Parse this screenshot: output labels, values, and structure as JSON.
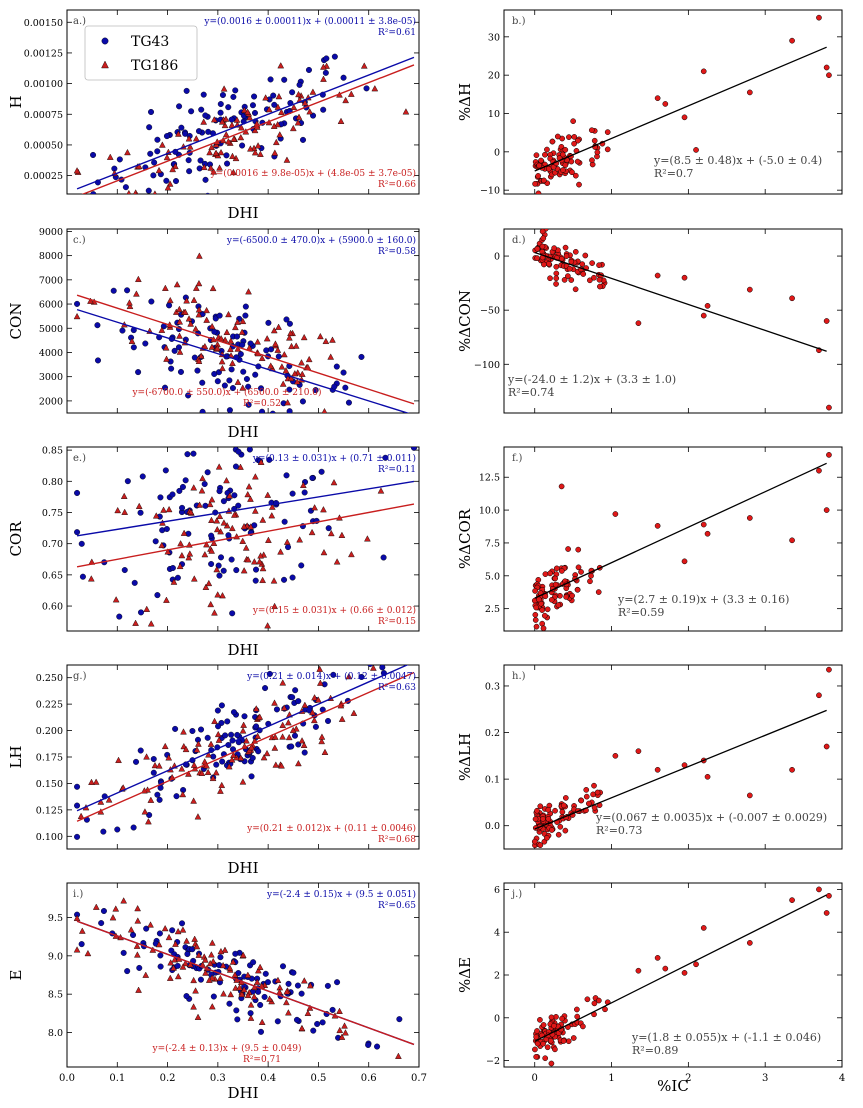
{
  "figure": {
    "legend": [
      {
        "label": "TG43",
        "color": "#0a0aa8",
        "marker": "circle"
      },
      {
        "label": "TG186",
        "color": "#c81e1e",
        "marker": "triangle"
      }
    ]
  },
  "chart_data": [
    {
      "type": "scatter",
      "panel": "a.)",
      "title": "",
      "xlabel": "DHI",
      "ylabel": "H",
      "xlim": [
        0.0,
        0.7
      ],
      "ylim": [
        0.0001,
        0.0016
      ],
      "xticks": [
        0.0,
        0.1,
        0.2,
        0.3,
        0.4,
        0.5,
        0.6,
        0.7
      ],
      "xticklabels": [],
      "yticks": [
        0.00025,
        0.0005,
        0.00075,
        0.001,
        0.00125,
        0.0015
      ],
      "yticklabels": [
        "0.00025",
        "0.00050",
        "0.00075",
        "0.00100",
        "0.00125",
        "0.00150"
      ],
      "legend_position": "top-left",
      "series": [
        {
          "name": "TG43",
          "marker": "circle",
          "color": "#0a0aa8",
          "fit": {
            "slope": 0.0016,
            "intercept": 0.00011,
            "label": "y=(0.0016 ± 0.00011)x + (0.00011 ± 3.8e-05)",
            "r2": "R²=0.61"
          }
        },
        {
          "name": "TG186",
          "marker": "triangle",
          "color": "#c81e1e",
          "fit": {
            "slope": 0.0016,
            "intercept": 4.8e-05,
            "label": "y=(0.0016 ± 9.8e-05)x + (4.8e-05 ± 3.7e-05)",
            "r2": "R²=0.66"
          }
        }
      ]
    },
    {
      "type": "scatter",
      "panel": "b.)",
      "xlabel": "",
      "ylabel": "%Δ_H",
      "xlim": [
        -0.4,
        4.0
      ],
      "ylim": [
        -11,
        37
      ],
      "xticks": [
        0,
        1,
        2,
        3,
        4
      ],
      "xticklabels": [],
      "yticks": [
        -10,
        0,
        10,
        20,
        30
      ],
      "yticklabels": [
        "−10",
        "0",
        "10",
        "20",
        "30"
      ],
      "fit": {
        "slope": 8.5,
        "intercept": -5.0,
        "label": "y=(8.5 ± 0.48)x + (-5.0 ± 0.4)",
        "r2": "R²=0.7"
      },
      "outliers": [
        [
          0.3,
          4
        ],
        [
          0.5,
          8
        ],
        [
          1.6,
          14
        ],
        [
          1.7,
          12.5
        ],
        [
          1.95,
          9
        ],
        [
          2.1,
          0.5
        ],
        [
          2.2,
          21
        ],
        [
          2.8,
          15.5
        ],
        [
          3.35,
          29
        ],
        [
          3.7,
          35
        ],
        [
          3.8,
          22
        ],
        [
          3.83,
          20
        ]
      ]
    },
    {
      "type": "scatter",
      "panel": "c.)",
      "xlabel": "DHI",
      "ylabel": "CON",
      "xlim": [
        0.0,
        0.7
      ],
      "ylim": [
        1500,
        9100
      ],
      "xticks": [
        0.0,
        0.1,
        0.2,
        0.3,
        0.4,
        0.5,
        0.6,
        0.7
      ],
      "xticklabels": [],
      "yticks": [
        2000,
        3000,
        4000,
        5000,
        6000,
        7000,
        8000,
        9000
      ],
      "yticklabels": [
        "2000",
        "3000",
        "4000",
        "5000",
        "6000",
        "7000",
        "8000",
        "9000"
      ],
      "series": [
        {
          "name": "TG43",
          "marker": "circle",
          "color": "#0a0aa8",
          "fit": {
            "slope": -6500,
            "intercept": 5900,
            "label": "y=(-6500.0 ± 470.0)x + (5900.0 ± 160.0)",
            "r2": "R²=0.58"
          }
        },
        {
          "name": "TG186",
          "marker": "triangle",
          "color": "#c81e1e",
          "fit": {
            "slope": -6700,
            "intercept": 6500,
            "label": "y=(-6700.0 ± 550.0)x + (6500.0 ± 210.0)",
            "r2": "R²=0.52"
          }
        }
      ]
    },
    {
      "type": "scatter",
      "panel": "d.)",
      "xlabel": "",
      "ylabel": "%Δ_CON",
      "xlim": [
        -0.4,
        4.0
      ],
      "ylim": [
        -145,
        25
      ],
      "xticks": [
        0,
        1,
        2,
        3,
        4
      ],
      "xticklabels": [],
      "yticks": [
        -100,
        -50,
        0
      ],
      "yticklabels": [
        "−100",
        "−50",
        "0"
      ],
      "fit": {
        "slope": -24.0,
        "intercept": 3.3,
        "label": "y=(-24.0 ± 1.2)x + (3.3 ± 1.0)",
        "r2": "R²=0.74"
      },
      "outliers": [
        [
          1.35,
          -62
        ],
        [
          1.6,
          -18
        ],
        [
          1.95,
          -20
        ],
        [
          2.2,
          -55
        ],
        [
          2.25,
          -46
        ],
        [
          2.8,
          -31
        ],
        [
          3.35,
          -39
        ],
        [
          3.7,
          -87
        ],
        [
          3.8,
          -60
        ],
        [
          3.83,
          -140
        ]
      ]
    },
    {
      "type": "scatter",
      "panel": "e.)",
      "xlabel": "DHI",
      "ylabel": "COR",
      "xlim": [
        0.0,
        0.7
      ],
      "ylim": [
        0.56,
        0.855
      ],
      "xticks": [
        0.0,
        0.1,
        0.2,
        0.3,
        0.4,
        0.5,
        0.6,
        0.7
      ],
      "xticklabels": [],
      "yticks": [
        0.6,
        0.65,
        0.7,
        0.75,
        0.8,
        0.85
      ],
      "yticklabels": [
        "0.60",
        "0.65",
        "0.70",
        "0.75",
        "0.80",
        "0.85"
      ],
      "series": [
        {
          "name": "TG43",
          "marker": "circle",
          "color": "#0a0aa8",
          "fit": {
            "slope": 0.13,
            "intercept": 0.71,
            "label": "y=(0.13 ± 0.031)x + (0.71 ± 0.011)",
            "r2": "R²=0.11"
          }
        },
        {
          "name": "TG186",
          "marker": "triangle",
          "color": "#c81e1e",
          "fit": {
            "slope": 0.15,
            "intercept": 0.66,
            "label": "y=(0.15 ± 0.031)x + (0.66 ± 0.012)",
            "r2": "R²=0.15"
          }
        }
      ]
    },
    {
      "type": "scatter",
      "panel": "f.)",
      "xlabel": "",
      "ylabel": "%Δ_COR",
      "xlim": [
        -0.4,
        4.0
      ],
      "ylim": [
        0.8,
        14.8
      ],
      "xticks": [
        0,
        1,
        2,
        3,
        4
      ],
      "xticklabels": [],
      "yticks": [
        2.5,
        5.0,
        7.5,
        10.0,
        12.5
      ],
      "yticklabels": [
        "2.5",
        "5.0",
        "7.5",
        "10.0",
        "12.5"
      ],
      "fit": {
        "slope": 2.7,
        "intercept": 3.3,
        "label": "y=(2.7 ± 0.19)x + (3.3 ± 0.16)",
        "r2": "R²=0.59"
      },
      "outliers": [
        [
          0.35,
          11.8
        ],
        [
          1.05,
          9.7
        ],
        [
          1.6,
          8.8
        ],
        [
          1.95,
          6.1
        ],
        [
          2.2,
          8.9
        ],
        [
          2.25,
          8.2
        ],
        [
          2.8,
          9.4
        ],
        [
          3.35,
          7.7
        ],
        [
          3.7,
          13.0
        ],
        [
          3.8,
          10.0
        ],
        [
          3.83,
          14.2
        ]
      ]
    },
    {
      "type": "scatter",
      "panel": "g.)",
      "xlabel": "DHI",
      "ylabel": "LH",
      "xlim": [
        0.0,
        0.7
      ],
      "ylim": [
        0.088,
        0.262
      ],
      "xticks": [
        0.0,
        0.1,
        0.2,
        0.3,
        0.4,
        0.5,
        0.6,
        0.7
      ],
      "xticklabels": [],
      "yticks": [
        0.1,
        0.125,
        0.15,
        0.175,
        0.2,
        0.225,
        0.25
      ],
      "yticklabels": [
        "0.100",
        "0.125",
        "0.150",
        "0.175",
        "0.200",
        "0.225",
        "0.250"
      ],
      "series": [
        {
          "name": "TG43",
          "marker": "circle",
          "color": "#0a0aa8",
          "fit": {
            "slope": 0.21,
            "intercept": 0.12,
            "label": "y=(0.21 ± 0.014)x + (0.12 ± 0.0047)",
            "r2": "R²=0.63"
          }
        },
        {
          "name": "TG186",
          "marker": "triangle",
          "color": "#c81e1e",
          "fit": {
            "slope": 0.21,
            "intercept": 0.11,
            "label": "y=(0.21 ± 0.012)x + (0.11 ± 0.0046)",
            "r2": "R²=0.68"
          }
        }
      ]
    },
    {
      "type": "scatter",
      "panel": "h.)",
      "xlabel": "",
      "ylabel": "%Δ_LH",
      "xlim": [
        -0.4,
        4.0
      ],
      "ylim": [
        -0.05,
        0.345
      ],
      "xticks": [
        0,
        1,
        2,
        3,
        4
      ],
      "xticklabels": [],
      "yticks": [
        0.0,
        0.1,
        0.2,
        0.3
      ],
      "yticklabels": [
        "0.0",
        "0.1",
        "0.2",
        "0.3"
      ],
      "fit": {
        "slope": 0.067,
        "intercept": -0.007,
        "label": "y=(0.067 ± 0.0035)x + (-0.007 ± 0.0029)",
        "r2": "R²=0.73"
      },
      "outliers": [
        [
          1.05,
          0.15
        ],
        [
          1.35,
          0.16
        ],
        [
          1.6,
          0.12
        ],
        [
          1.95,
          0.13
        ],
        [
          2.2,
          0.14
        ],
        [
          2.25,
          0.105
        ],
        [
          2.8,
          0.065
        ],
        [
          3.35,
          0.12
        ],
        [
          3.7,
          0.28
        ],
        [
          3.8,
          0.17
        ],
        [
          3.83,
          0.335
        ]
      ]
    },
    {
      "type": "scatter",
      "panel": "i.)",
      "xlabel": "DHI",
      "ylabel": "E",
      "xlim": [
        0.0,
        0.7
      ],
      "ylim": [
        7.55,
        9.95
      ],
      "xticks": [
        0.0,
        0.1,
        0.2,
        0.3,
        0.4,
        0.5,
        0.6,
        0.7
      ],
      "xticklabels": [
        "0.0",
        "0.1",
        "0.2",
        "0.3",
        "0.4",
        "0.5",
        "0.6",
        "0.7"
      ],
      "yticks": [
        8.0,
        8.5,
        9.0,
        9.5
      ],
      "yticklabels": [
        "8.0",
        "8.5",
        "9.0",
        "9.5"
      ],
      "series": [
        {
          "name": "TG43",
          "marker": "circle",
          "color": "#0a0aa8",
          "fit": {
            "slope": -2.4,
            "intercept": 9.5,
            "label": "y=(-2.4 ± 0.15)x + (9.5 ± 0.051)",
            "r2": "R²=0.65"
          }
        },
        {
          "name": "TG186",
          "marker": "triangle",
          "color": "#c81e1e",
          "fit": {
            "slope": -2.4,
            "intercept": 9.5,
            "label": "y=(-2.4 ± 0.13)x + (9.5 ± 0.049)",
            "r2": "R²=0.71"
          }
        }
      ]
    },
    {
      "type": "scatter",
      "panel": "j.)",
      "xlabel": "%IC",
      "ylabel": "%Δ_E",
      "xlim": [
        -0.4,
        4.0
      ],
      "ylim": [
        -2.3,
        6.3
      ],
      "xticks": [
        0,
        1,
        2,
        3,
        4
      ],
      "xticklabels": [
        "0",
        "1",
        "2",
        "3",
        "4"
      ],
      "yticks": [
        -2,
        0,
        2,
        4,
        6
      ],
      "yticklabels": [
        "−2",
        "0",
        "2",
        "4",
        "6"
      ],
      "fit": {
        "slope": 1.8,
        "intercept": -1.1,
        "label": "y=(1.8 ± 0.055)x + (-1.1 ± 0.046)",
        "r2": "R²=0.89"
      },
      "outliers": [
        [
          1.35,
          2.2
        ],
        [
          1.6,
          2.8
        ],
        [
          1.7,
          2.3
        ],
        [
          1.95,
          2.1
        ],
        [
          2.1,
          2.5
        ],
        [
          2.2,
          4.2
        ],
        [
          2.8,
          3.5
        ],
        [
          3.35,
          5.5
        ],
        [
          3.7,
          6.0
        ],
        [
          3.8,
          4.9
        ],
        [
          3.83,
          5.7
        ]
      ]
    }
  ]
}
